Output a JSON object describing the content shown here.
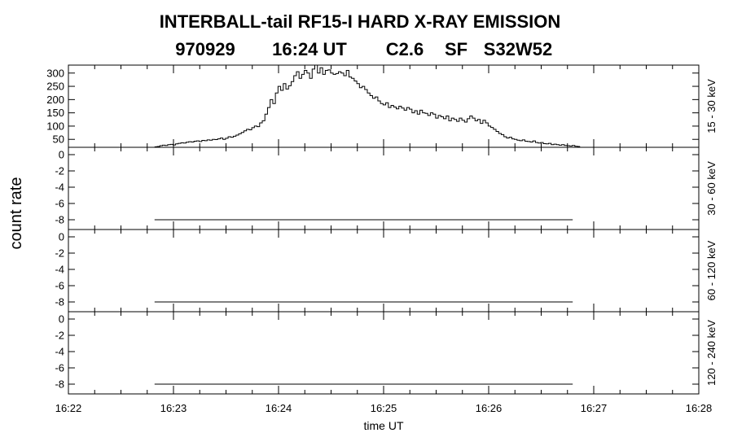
{
  "chart_data": {
    "type": "line",
    "title": {
      "line1": "INTERBALL-tail  RF15-I  HARD  X-RAY  EMISSION",
      "line2_parts": [
        "970929",
        "16:24 UT",
        "C2.6",
        "SF",
        "S32W52"
      ]
    },
    "ylabel": "count rate",
    "xlabel": "time UT",
    "x_ticks": [
      "16:22",
      "16:23",
      "16:24",
      "16:25",
      "16:26",
      "16:27",
      "16:28"
    ],
    "xlim_minutes": [
      0,
      6
    ],
    "panels": [
      {
        "channel": "15 - 30 keV",
        "ylim": [
          20,
          330
        ],
        "y_ticks": [
          "50",
          "100",
          "150",
          "200",
          "250",
          "300"
        ],
        "y_tick_values": [
          50,
          100,
          150,
          200,
          250,
          300
        ],
        "series": {
          "x_start_minutes": 0.82,
          "x_step_minutes": 0.025,
          "values": [
            22,
            23,
            26,
            28,
            27,
            30,
            31,
            29,
            33,
            35,
            37,
            36,
            39,
            41,
            40,
            43,
            44,
            42,
            46,
            45,
            48,
            47,
            50,
            49,
            52,
            55,
            50,
            54,
            60,
            58,
            62,
            66,
            71,
            76,
            82,
            88,
            86,
            94,
            100,
            98,
            112,
            120,
            145,
            170,
            200,
            185,
            225,
            250,
            235,
            260,
            240,
            252,
            268,
            290,
            305,
            280,
            295,
            310,
            300,
            280,
            315,
            330,
            300,
            320,
            295,
            310,
            312,
            300,
            295,
            298,
            305,
            300,
            290,
            310,
            285,
            280,
            270,
            260,
            245,
            250,
            238,
            225,
            215,
            205,
            210,
            195,
            185,
            180,
            188,
            170,
            178,
            172,
            165,
            175,
            168,
            160,
            170,
            164,
            150,
            158,
            145,
            160,
            150,
            148,
            140,
            150,
            145,
            130,
            140,
            135,
            128,
            138,
            120,
            130,
            125,
            118,
            130,
            122,
            115,
            128,
            138,
            130,
            120,
            125,
            110,
            122,
            112,
            100,
            95,
            88,
            80,
            72,
            68,
            60,
            55,
            58,
            52,
            50,
            47,
            45,
            48,
            43,
            42,
            40,
            44,
            38,
            36,
            38,
            34,
            33,
            35,
            30,
            32,
            30,
            28,
            30,
            27,
            26,
            25,
            27,
            24,
            23
          ]
        }
      },
      {
        "channel": "30 - 60 keV",
        "ylim": [
          -9.2,
          0.9
        ],
        "y_ticks": [
          "-8",
          "-6",
          "-4",
          "-2",
          "0"
        ],
        "y_tick_values": [
          -8,
          -6,
          -4,
          -2,
          0
        ],
        "series": {
          "x_range_minutes": [
            0.82,
            4.8
          ],
          "value": -8
        }
      },
      {
        "channel": "60 - 120 keV",
        "ylim": [
          -9.2,
          0.9
        ],
        "y_ticks": [
          "-8",
          "-6",
          "-4",
          "-2",
          "0"
        ],
        "y_tick_values": [
          -8,
          -6,
          -4,
          -2,
          0
        ],
        "series": {
          "x_range_minutes": [
            0.82,
            4.8
          ],
          "value": -8
        }
      },
      {
        "channel": "120 - 240 keV",
        "ylim": [
          -9.2,
          0.9
        ],
        "y_ticks": [
          "-8",
          "-6",
          "-4",
          "-2",
          "0"
        ],
        "y_tick_values": [
          -8,
          -6,
          -4,
          -2,
          0
        ],
        "series": {
          "x_range_minutes": [
            0.82,
            4.8
          ],
          "value": -8
        }
      }
    ]
  }
}
